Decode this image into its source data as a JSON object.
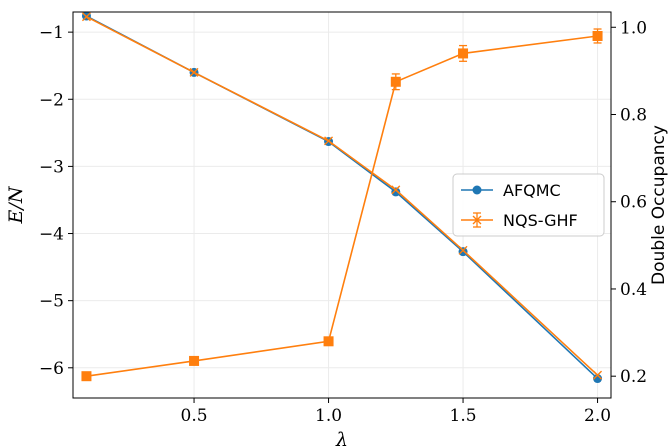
{
  "chart_data": {
    "type": "line",
    "xlabel": "λ",
    "ylabel": "E/N",
    "ylabel_right": "Double Occupancy",
    "xlim": [
      0.05,
      2.05
    ],
    "ylim": [
      -6.45,
      -0.7
    ],
    "ylim_right": [
      0.15,
      1.035
    ],
    "xticks": [
      0.5,
      1.0,
      1.5,
      2.0
    ],
    "xtick_labels": [
      "0.5",
      "1.0",
      "1.5",
      "2.0"
    ],
    "yticks": [
      -1,
      -2,
      -3,
      -4,
      -5,
      -6
    ],
    "ytick_labels": [
      "−1",
      "−2",
      "−3",
      "−4",
      "−5",
      "−6"
    ],
    "yticks_right": [
      1.0,
      0.8,
      0.6,
      0.4,
      0.2
    ],
    "ytick_labels_right": [
      "1.0",
      "0.8",
      "0.6",
      "0.4",
      "0.2"
    ],
    "grid": true,
    "legend_position": "center-right",
    "x": [
      0.1,
      0.5,
      1.0,
      1.25,
      1.5,
      2.0
    ],
    "series": [
      {
        "name": "AFQMC",
        "axis": "left",
        "color": "#1f77b4",
        "marker": "circle",
        "values": [
          -0.76,
          -1.6,
          -2.63,
          -3.38,
          -4.27,
          -6.16
        ]
      },
      {
        "name": "NQS-GHF",
        "axis": "left",
        "color": "#ff7f0e",
        "marker": "x",
        "errorbars": true,
        "values": [
          -0.77,
          -1.6,
          -2.62,
          -3.35,
          -4.25,
          -6.11
        ]
      },
      {
        "axis": "right",
        "color": "#ff7f0e",
        "marker": "square",
        "errorbars": true,
        "values": [
          0.2,
          0.235,
          0.28,
          0.875,
          0.94,
          0.98
        ],
        "errors": [
          0.004,
          0.004,
          0.004,
          0.018,
          0.018,
          0.016
        ]
      }
    ]
  }
}
